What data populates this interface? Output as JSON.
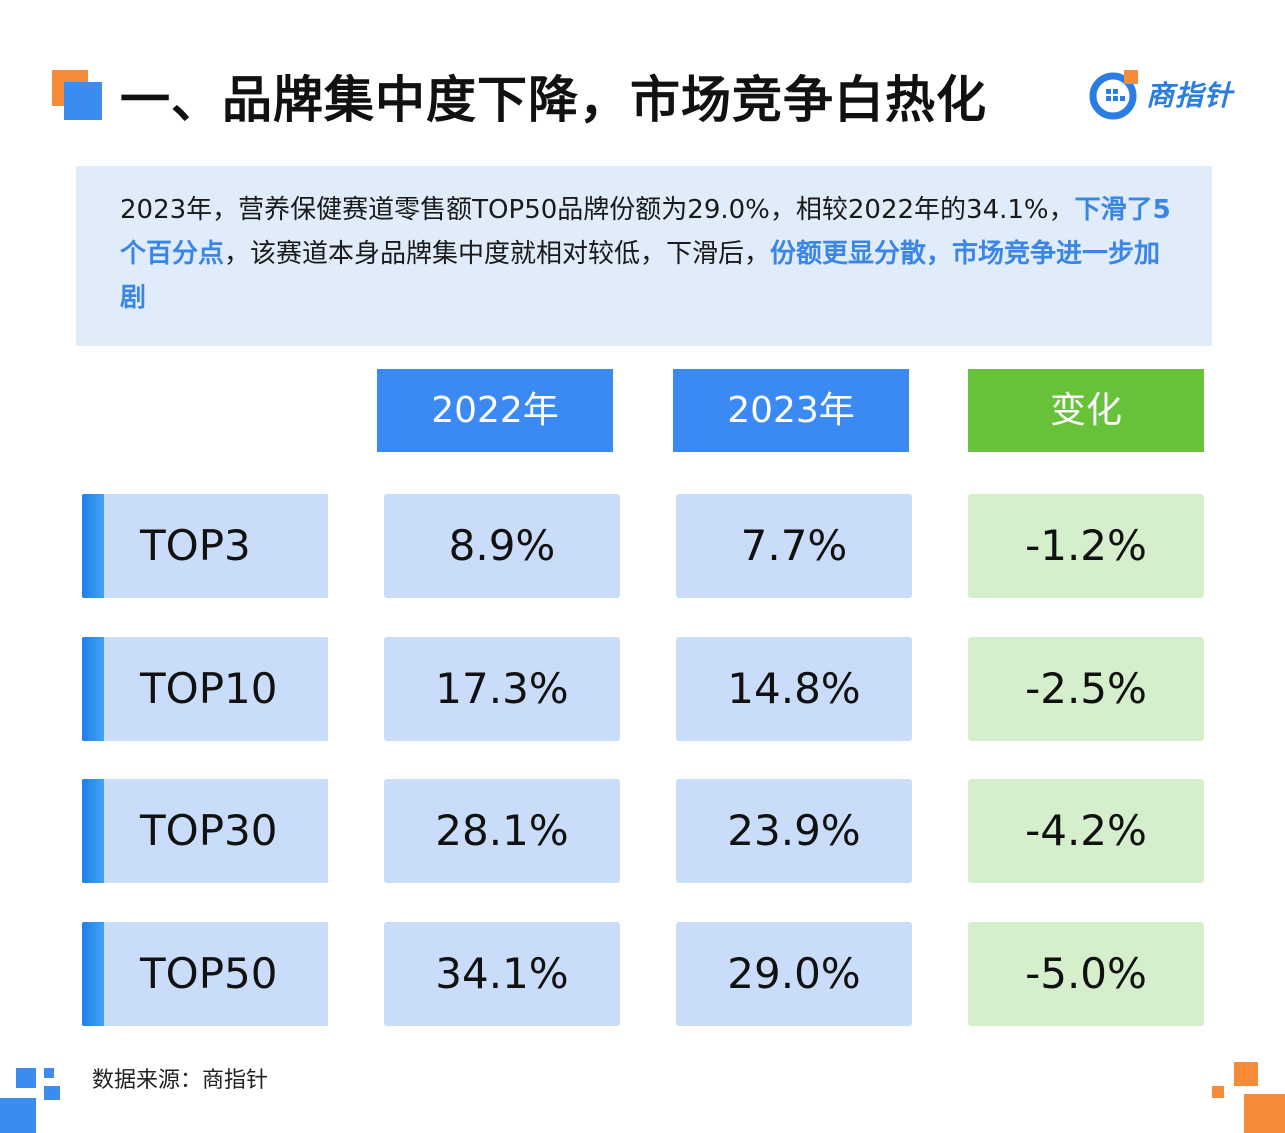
{
  "header": {
    "title": "一、品牌集中度下降，市场竞争白热化",
    "logo_text": "商指针"
  },
  "summary": {
    "part1": "2023年，营养保健赛道零售额TOP50品牌份额为29.0%，相较2022年的34.1%，",
    "highlight1": "下滑了5个百分点",
    "part2": "，该赛道本身品牌集中度就相对较低，下滑后，",
    "highlight2": "份额更显分散，市场竞争进一步加剧"
  },
  "table": {
    "headers": [
      "2022年",
      "2023年",
      "变化"
    ],
    "rows": [
      {
        "label": "TOP3",
        "y2022": "8.9%",
        "y2023": "7.7%",
        "change": "-1.2%"
      },
      {
        "label": "TOP10",
        "y2022": "17.3%",
        "y2023": "14.8%",
        "change": "-2.5%"
      },
      {
        "label": "TOP30",
        "y2022": "28.1%",
        "y2023": "23.9%",
        "change": "-4.2%"
      },
      {
        "label": "TOP50",
        "y2022": "34.1%",
        "y2023": "29.0%",
        "change": "-5.0%"
      }
    ]
  },
  "footer": {
    "source": "数据来源：商指针"
  },
  "colors": {
    "accent_blue": "#3b89f3",
    "accent_green": "#67c23a",
    "accent_orange": "#f58b36",
    "highlight_text": "#3a86e6"
  }
}
